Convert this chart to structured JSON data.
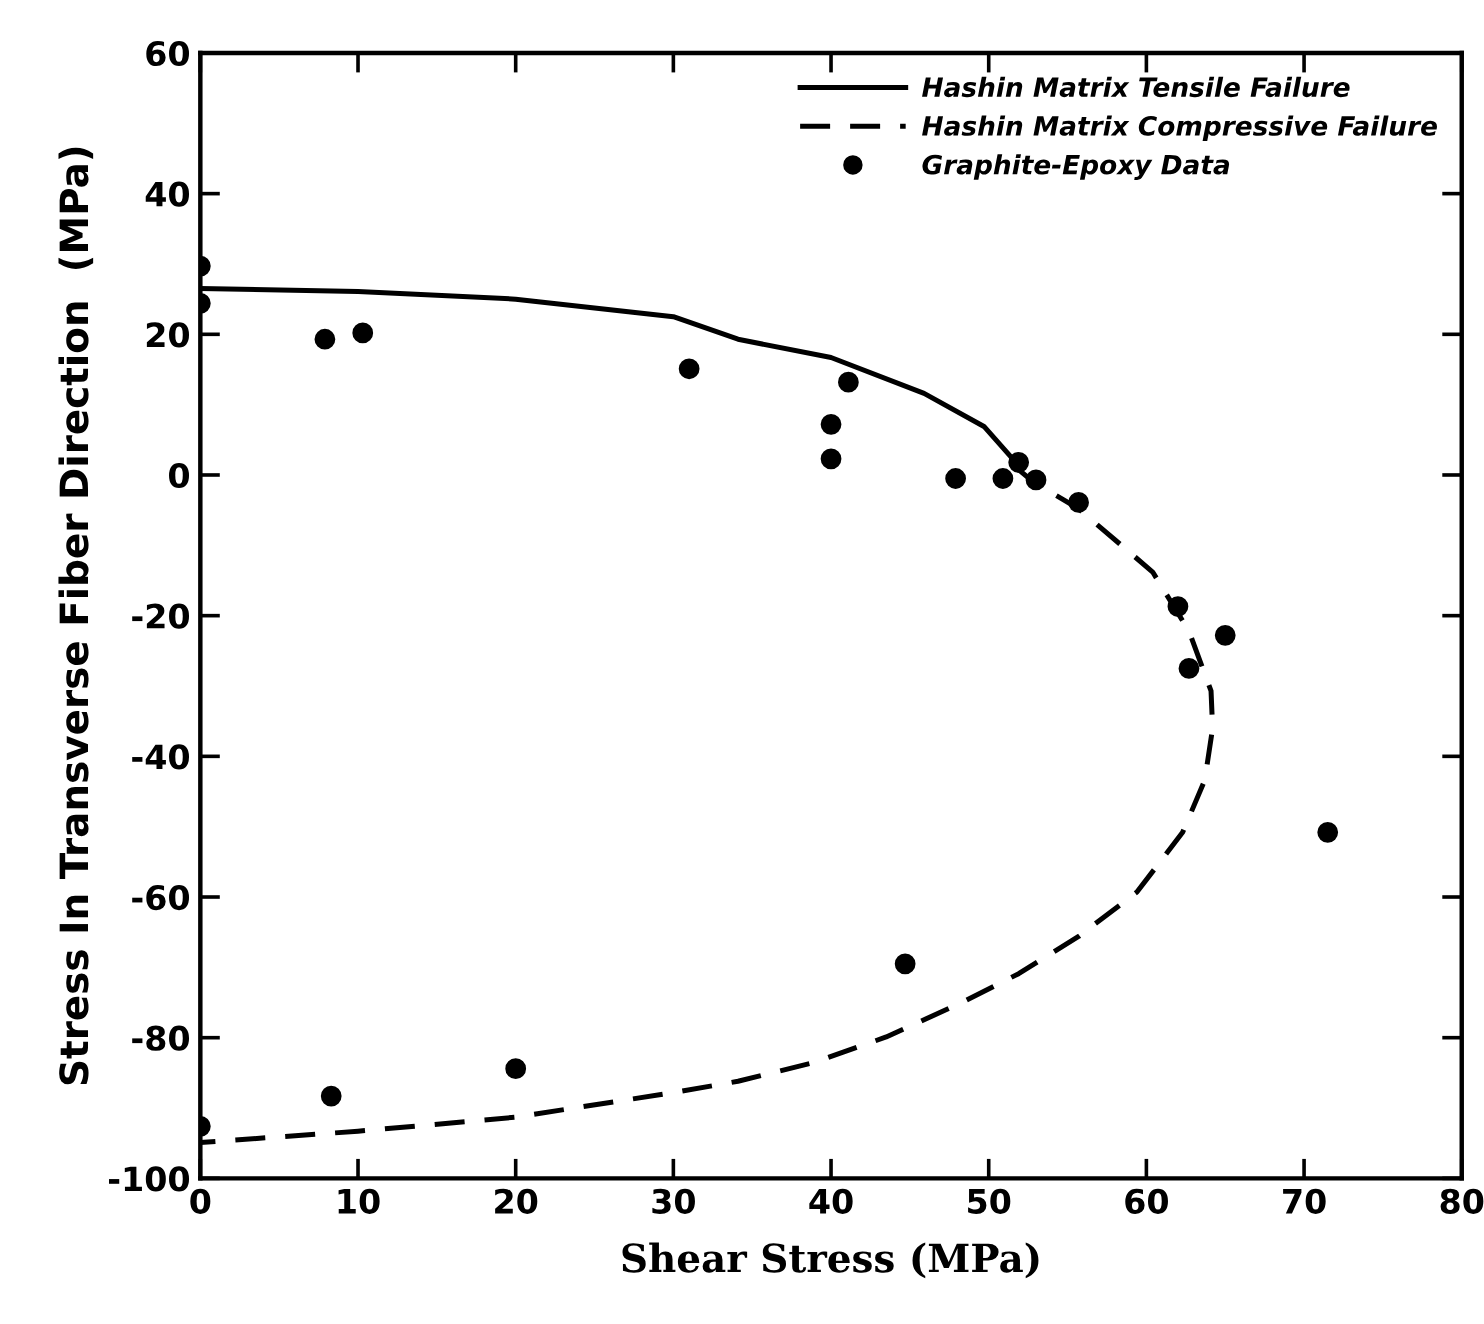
{
  "chart_data": {
    "type": "line",
    "xlabel": "Shear Stress (MPa)",
    "ylabel": "Stress In Transverse Fiber Direction  (MPa)",
    "xlim": [
      0,
      80
    ],
    "ylim": [
      -100,
      60
    ],
    "xticks": [
      0,
      10,
      20,
      30,
      40,
      50,
      60,
      70,
      80
    ],
    "yticks": [
      -100,
      -80,
      -60,
      -40,
      -20,
      0,
      20,
      40,
      60
    ],
    "grid": false,
    "legend": "top right",
    "series": [
      {
        "name": "Hashin Matrix Tensile Failure",
        "line_style": "solid",
        "marker": "none",
        "color": "#000000",
        "x": [
          0,
          10,
          20,
          30,
          34.1,
          40,
          45.9,
          49.7,
          51.6
        ],
        "values": [
          26.5,
          26.1,
          25,
          22.5,
          19.3,
          16.7,
          11.6,
          6.9,
          2.1
        ]
      },
      {
        "name": "Hashin Matrix Compressive Failure",
        "line_style": "dashed",
        "marker": "none",
        "color": "#000000",
        "x": [
          51.7,
          52.9,
          55.7,
          60.4,
          62.7,
          64.1,
          64.2,
          63.7,
          62.3,
          59.4,
          55.7,
          51.9,
          48.2,
          43.5,
          38.8,
          34.1,
          30,
          20,
          10,
          0
        ],
        "values": [
          1.1,
          -1.1,
          -4.8,
          -13.8,
          -22.2,
          -30.7,
          -36,
          -43.4,
          -50.8,
          -59.3,
          -65.6,
          -70.9,
          -75.1,
          -79.9,
          -83.6,
          -86.2,
          -87.8,
          -91.3,
          -93.3,
          -94.9
        ]
      },
      {
        "name": "Graphite-Epoxy Data",
        "type": "scatter",
        "marker": "circle",
        "color": "#000000",
        "x": [
          0,
          0,
          7.9,
          10.3,
          31,
          0,
          8.3,
          20,
          41.1,
          40,
          40,
          47.9,
          50.9,
          51.9,
          53,
          55.7,
          62,
          65,
          62.7,
          71.5,
          44.7
        ],
        "values": [
          29.7,
          24.4,
          19.3,
          20.2,
          15.1,
          -92.6,
          -88.3,
          -84.4,
          13.2,
          7.2,
          2.3,
          -0.5,
          -0.5,
          1.8,
          -0.7,
          -3.9,
          -18.7,
          -22.8,
          -27.5,
          -50.8,
          -69.5
        ]
      }
    ]
  }
}
